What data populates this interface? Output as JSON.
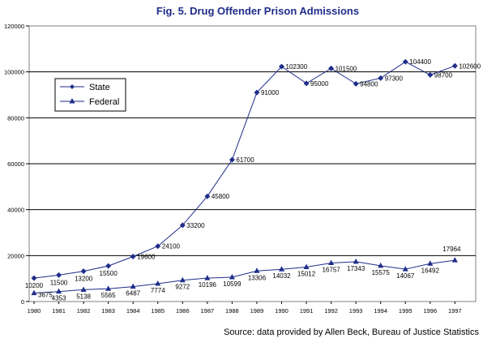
{
  "chart_data": {
    "type": "line",
    "title": "Fig. 5. Drug Offender Prison Admissions",
    "xlabel": "",
    "ylabel": "",
    "categories": [
      "1980",
      "1981",
      "1982",
      "1983",
      "1984",
      "1985",
      "1986",
      "1987",
      "1988",
      "1989",
      "1990",
      "1991",
      "1992",
      "1993",
      "1994",
      "1995",
      "1996",
      "1997"
    ],
    "ylim": [
      0,
      120000
    ],
    "yticks": [
      "0",
      "20000",
      "40000",
      "60000",
      "80000",
      "100000",
      "120000"
    ],
    "grid": "horizontal",
    "legend_position": "upper-left",
    "series": [
      {
        "name": "State",
        "color": "#1f2d8a",
        "marker": "diamond",
        "values": [
          10200,
          11500,
          13200,
          15500,
          19600,
          24100,
          33200,
          45800,
          61700,
          91000,
          102300,
          95000,
          101500,
          94800,
          97300,
          104400,
          98700,
          102600
        ],
        "labels": [
          "10200",
          "11500",
          "13200",
          "15500",
          "19600",
          "24100",
          "33200",
          "45800",
          "61700",
          "91000",
          "102300",
          "95000",
          "101500",
          "94800",
          "97300",
          "104400",
          "98700",
          "102600"
        ]
      },
      {
        "name": "Federal",
        "color": "#1f2d8a",
        "marker": "triangle",
        "values": [
          3675,
          4353,
          5138,
          5565,
          6487,
          7774,
          9272,
          10196,
          10599,
          13306,
          14032,
          15012,
          16757,
          17343,
          15575,
          14067,
          16492,
          17964
        ],
        "labels": [
          "3675",
          "4353",
          "5138",
          "5565",
          "6487",
          "7774",
          "9272",
          "10196",
          "10599",
          "13306",
          "14032",
          "15012",
          "16757",
          "17343",
          "15575",
          "14067",
          "16492",
          "17964"
        ]
      }
    ]
  },
  "source_text": "Source: data provided by Allen Beck, Bureau of Justice Statistics"
}
